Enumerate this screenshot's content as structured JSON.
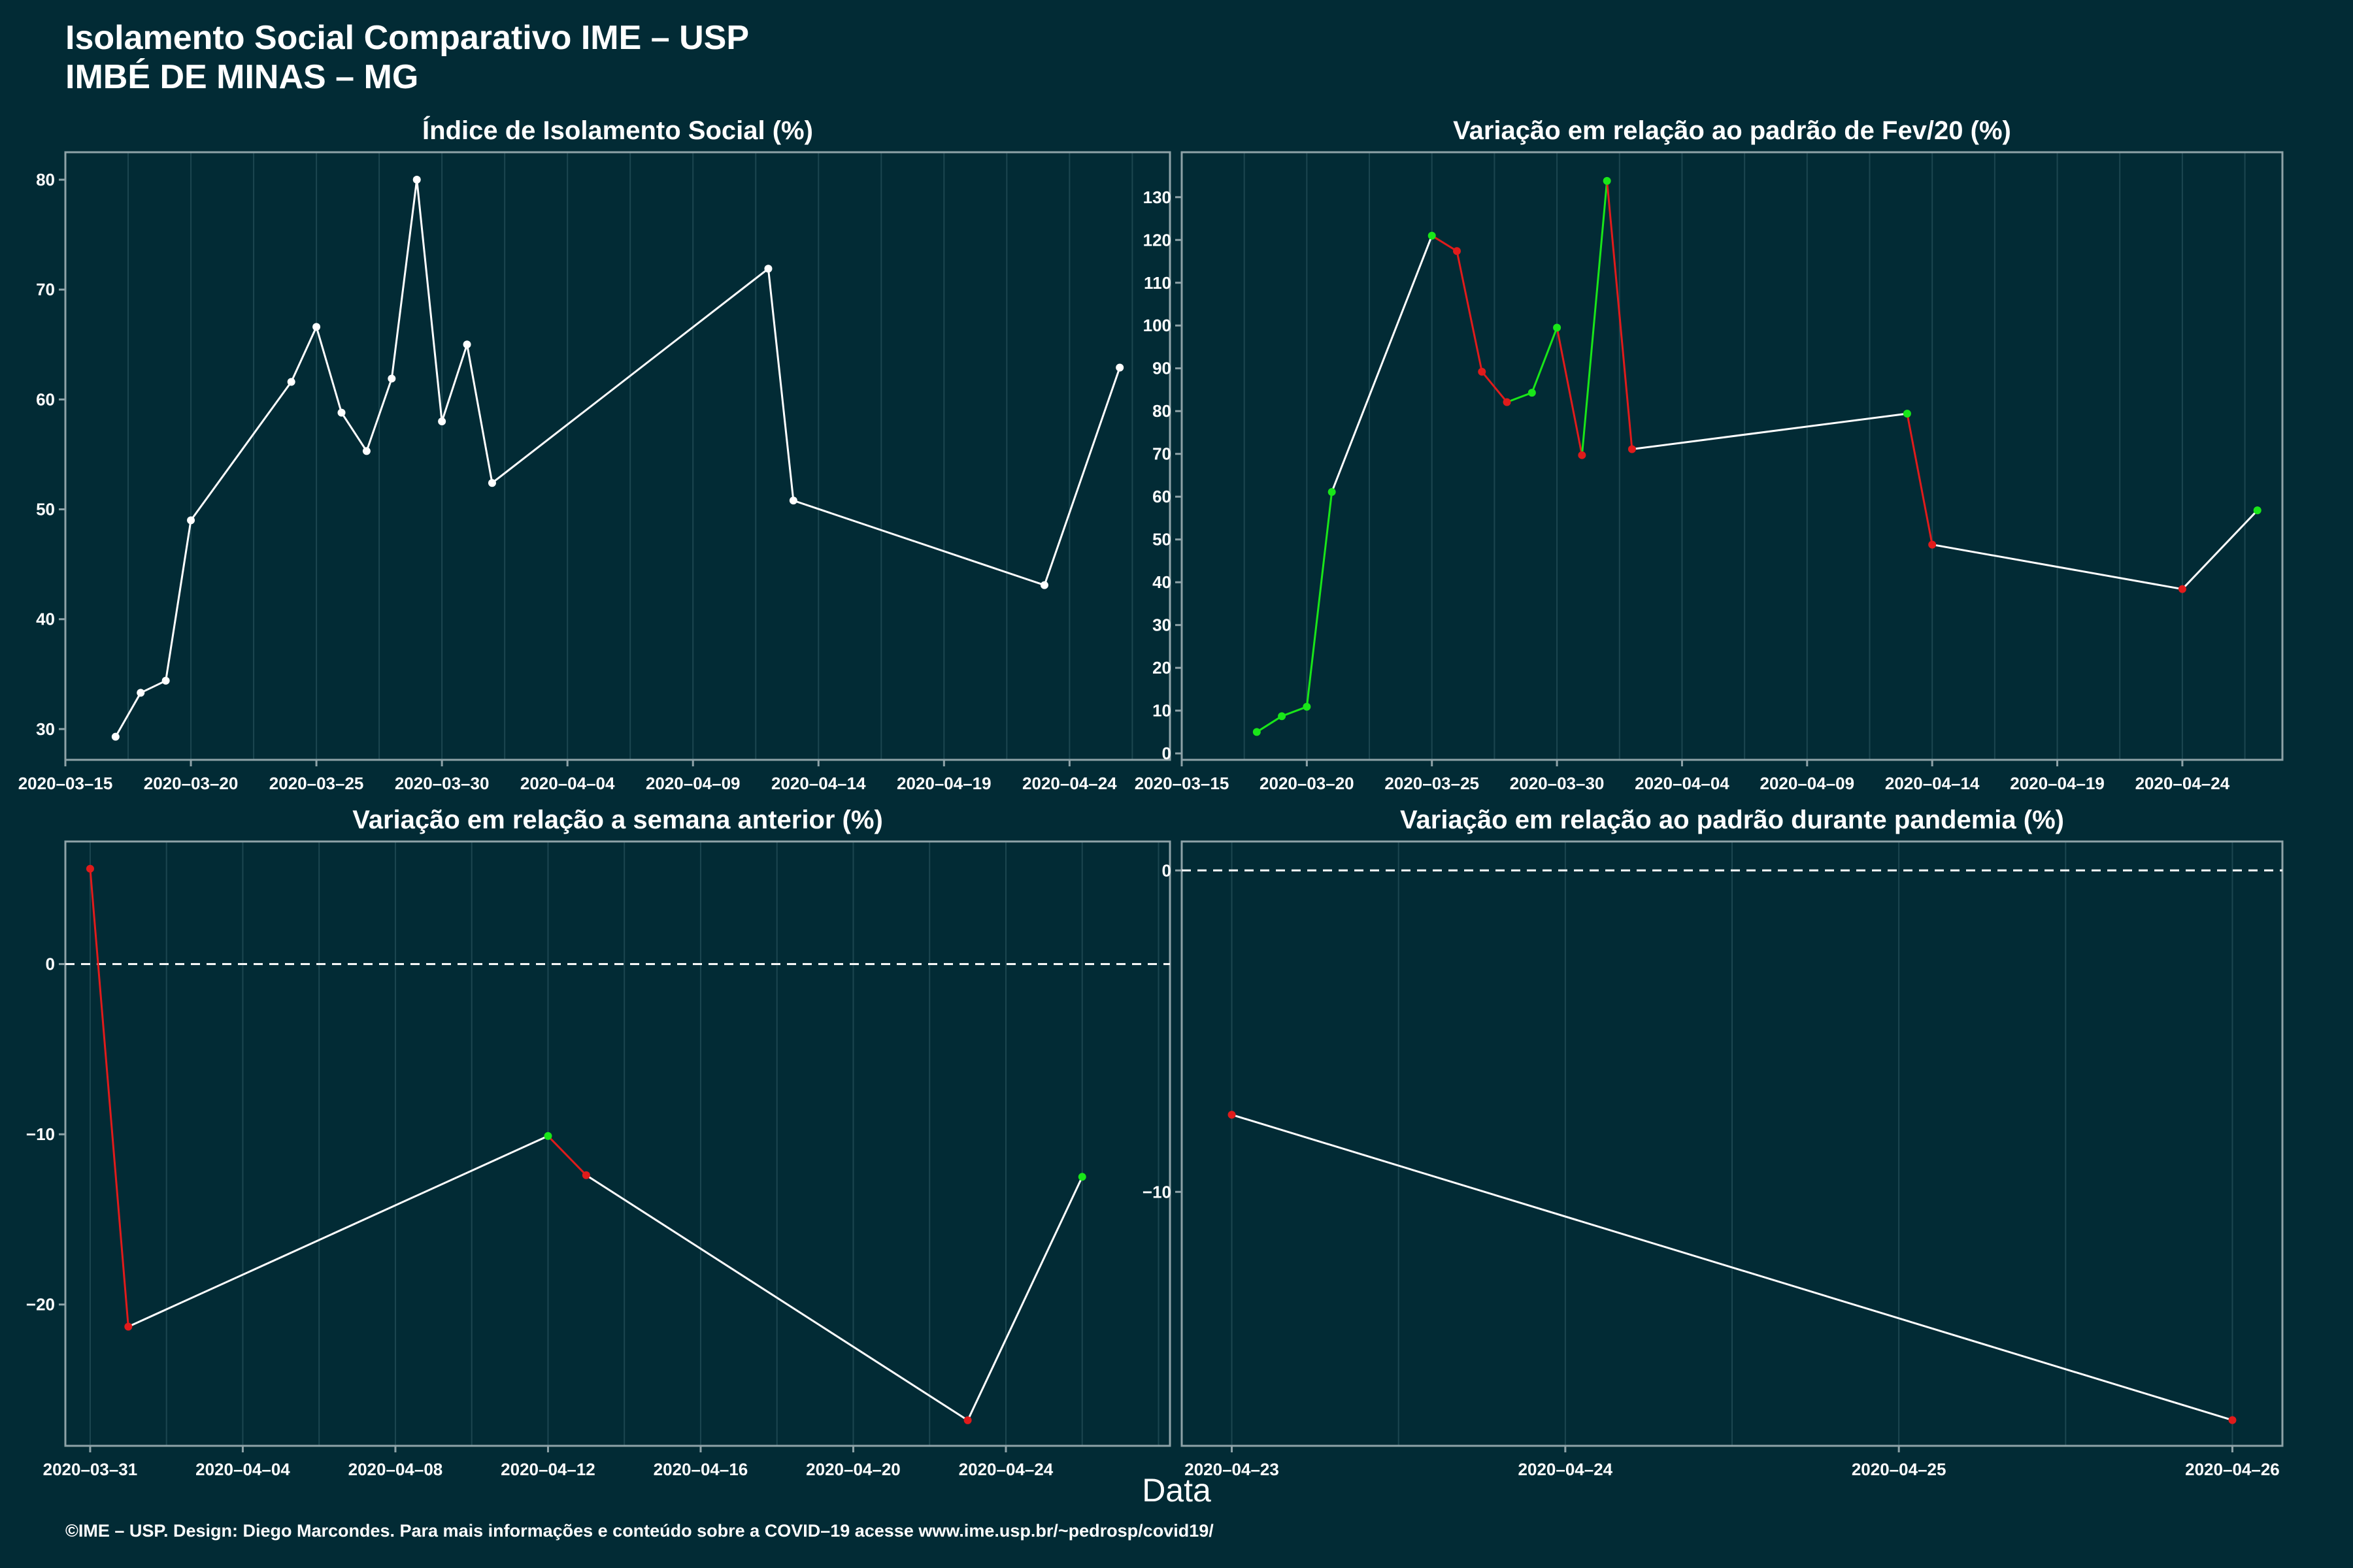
{
  "title": "Isolamento Social Comparativo IME – USP",
  "subtitle": "IMBÉ DE MINAS – MG",
  "xlabel": "Data",
  "footer": "©IME – USP. Design: Diego Marcondes. Para mais informações e conteúdo sobre a COVID–19 acesse www.ime.usp.br/~pedrosp/covid19/",
  "colors": {
    "background": "#022b35",
    "line": "#ffffff",
    "up": "#19e619",
    "down": "#e01b1b",
    "frame": "#8fa3a8",
    "grid": "#1c4650"
  },
  "chart_data": [
    {
      "id": "isolamento",
      "type": "line",
      "title": "Índice de Isolamento Social (%)",
      "x": [
        "2020-03-17",
        "2020-03-18",
        "2020-03-19",
        "2020-03-20",
        "2020-03-24",
        "2020-03-25",
        "2020-03-26",
        "2020-03-27",
        "2020-03-28",
        "2020-03-29",
        "2020-03-30",
        "2020-03-31",
        "2020-04-01",
        "2020-04-12",
        "2020-04-13",
        "2020-04-23",
        "2020-04-26"
      ],
      "y": [
        29.3,
        33.3,
        34.4,
        49.0,
        61.6,
        66.6,
        58.8,
        55.3,
        61.9,
        80.0,
        58.0,
        65.0,
        52.4,
        71.9,
        50.8,
        43.1,
        62.9
      ],
      "colored_segments": false,
      "xlim": [
        "2020-03-15",
        "2020-04-28"
      ],
      "xticks": [
        "2020-03-15",
        "2020-03-20",
        "2020-03-25",
        "2020-03-30",
        "2020-04-04",
        "2020-04-09",
        "2020-04-14",
        "2020-04-19",
        "2020-04-24"
      ],
      "ylim": [
        27.2,
        82.5
      ],
      "yticks": [
        30,
        40,
        50,
        60,
        70,
        80
      ],
      "ref_line": null,
      "grid": true
    },
    {
      "id": "var-fev20",
      "type": "line",
      "title": "Variação em relação ao padrão de Fev/20 (%)",
      "x": [
        "2020-03-18",
        "2020-03-19",
        "2020-03-20",
        "2020-03-21",
        "2020-03-25",
        "2020-03-26",
        "2020-03-27",
        "2020-03-28",
        "2020-03-29",
        "2020-03-30",
        "2020-03-31",
        "2020-04-01",
        "2020-04-02",
        "2020-04-13",
        "2020-04-14",
        "2020-04-24",
        "2020-04-27"
      ],
      "y": [
        5.0,
        8.7,
        10.9,
        61.1,
        121.0,
        117.4,
        89.2,
        82.1,
        84.3,
        99.5,
        69.7,
        133.8,
        71.1,
        79.4,
        48.8,
        38.4,
        56.8
      ],
      "colored_segments": true,
      "xlim": [
        "2020-03-15",
        "2020-04-28"
      ],
      "xticks": [
        "2020-03-15",
        "2020-03-20",
        "2020-03-25",
        "2020-03-30",
        "2020-04-04",
        "2020-04-09",
        "2020-04-14",
        "2020-04-19",
        "2020-04-24"
      ],
      "ylim": [
        -1.5,
        140.5
      ],
      "yticks": [
        0,
        10,
        20,
        30,
        40,
        50,
        60,
        70,
        80,
        90,
        100,
        110,
        120,
        130
      ],
      "ref_line": null,
      "grid": true
    },
    {
      "id": "var-semana",
      "type": "line",
      "title": "Variação em relação a semana anterior (%)",
      "x": [
        "2020-03-31",
        "2020-04-01",
        "2020-04-12",
        "2020-04-13",
        "2020-04-23",
        "2020-04-26"
      ],
      "y": [
        5.6,
        -21.3,
        -10.1,
        -12.4,
        -26.8,
        -12.5
      ],
      "colored_segments": true,
      "xlim": [
        "2020-03-30.35",
        "2020-04-28.3"
      ],
      "xticks": [
        "2020-03-31",
        "2020-04-04",
        "2020-04-08",
        "2020-04-12",
        "2020-04-16",
        "2020-04-20",
        "2020-04-24"
      ],
      "ylim": [
        -28.3,
        7.2
      ],
      "yticks": [
        -20,
        -10,
        0
      ],
      "ref_line": 0,
      "grid": true
    },
    {
      "id": "var-pandemia",
      "type": "line",
      "title": "Variação em relação ao padrão durante pandemia (%)",
      "x": [
        "2020-04-23",
        "2020-04-26"
      ],
      "y": [
        -7.6,
        -17.1
      ],
      "colored_segments": false,
      "point_color": "down",
      "xlim": [
        "2020-04-22.85",
        "2020-04-26.15"
      ],
      "xticks": [
        "2020-04-23",
        "2020-04-24",
        "2020-04-25",
        "2020-04-26"
      ],
      "ylim": [
        -17.9,
        0.9
      ],
      "yticks": [
        -10,
        0
      ],
      "ref_line": 0,
      "grid": true
    }
  ]
}
